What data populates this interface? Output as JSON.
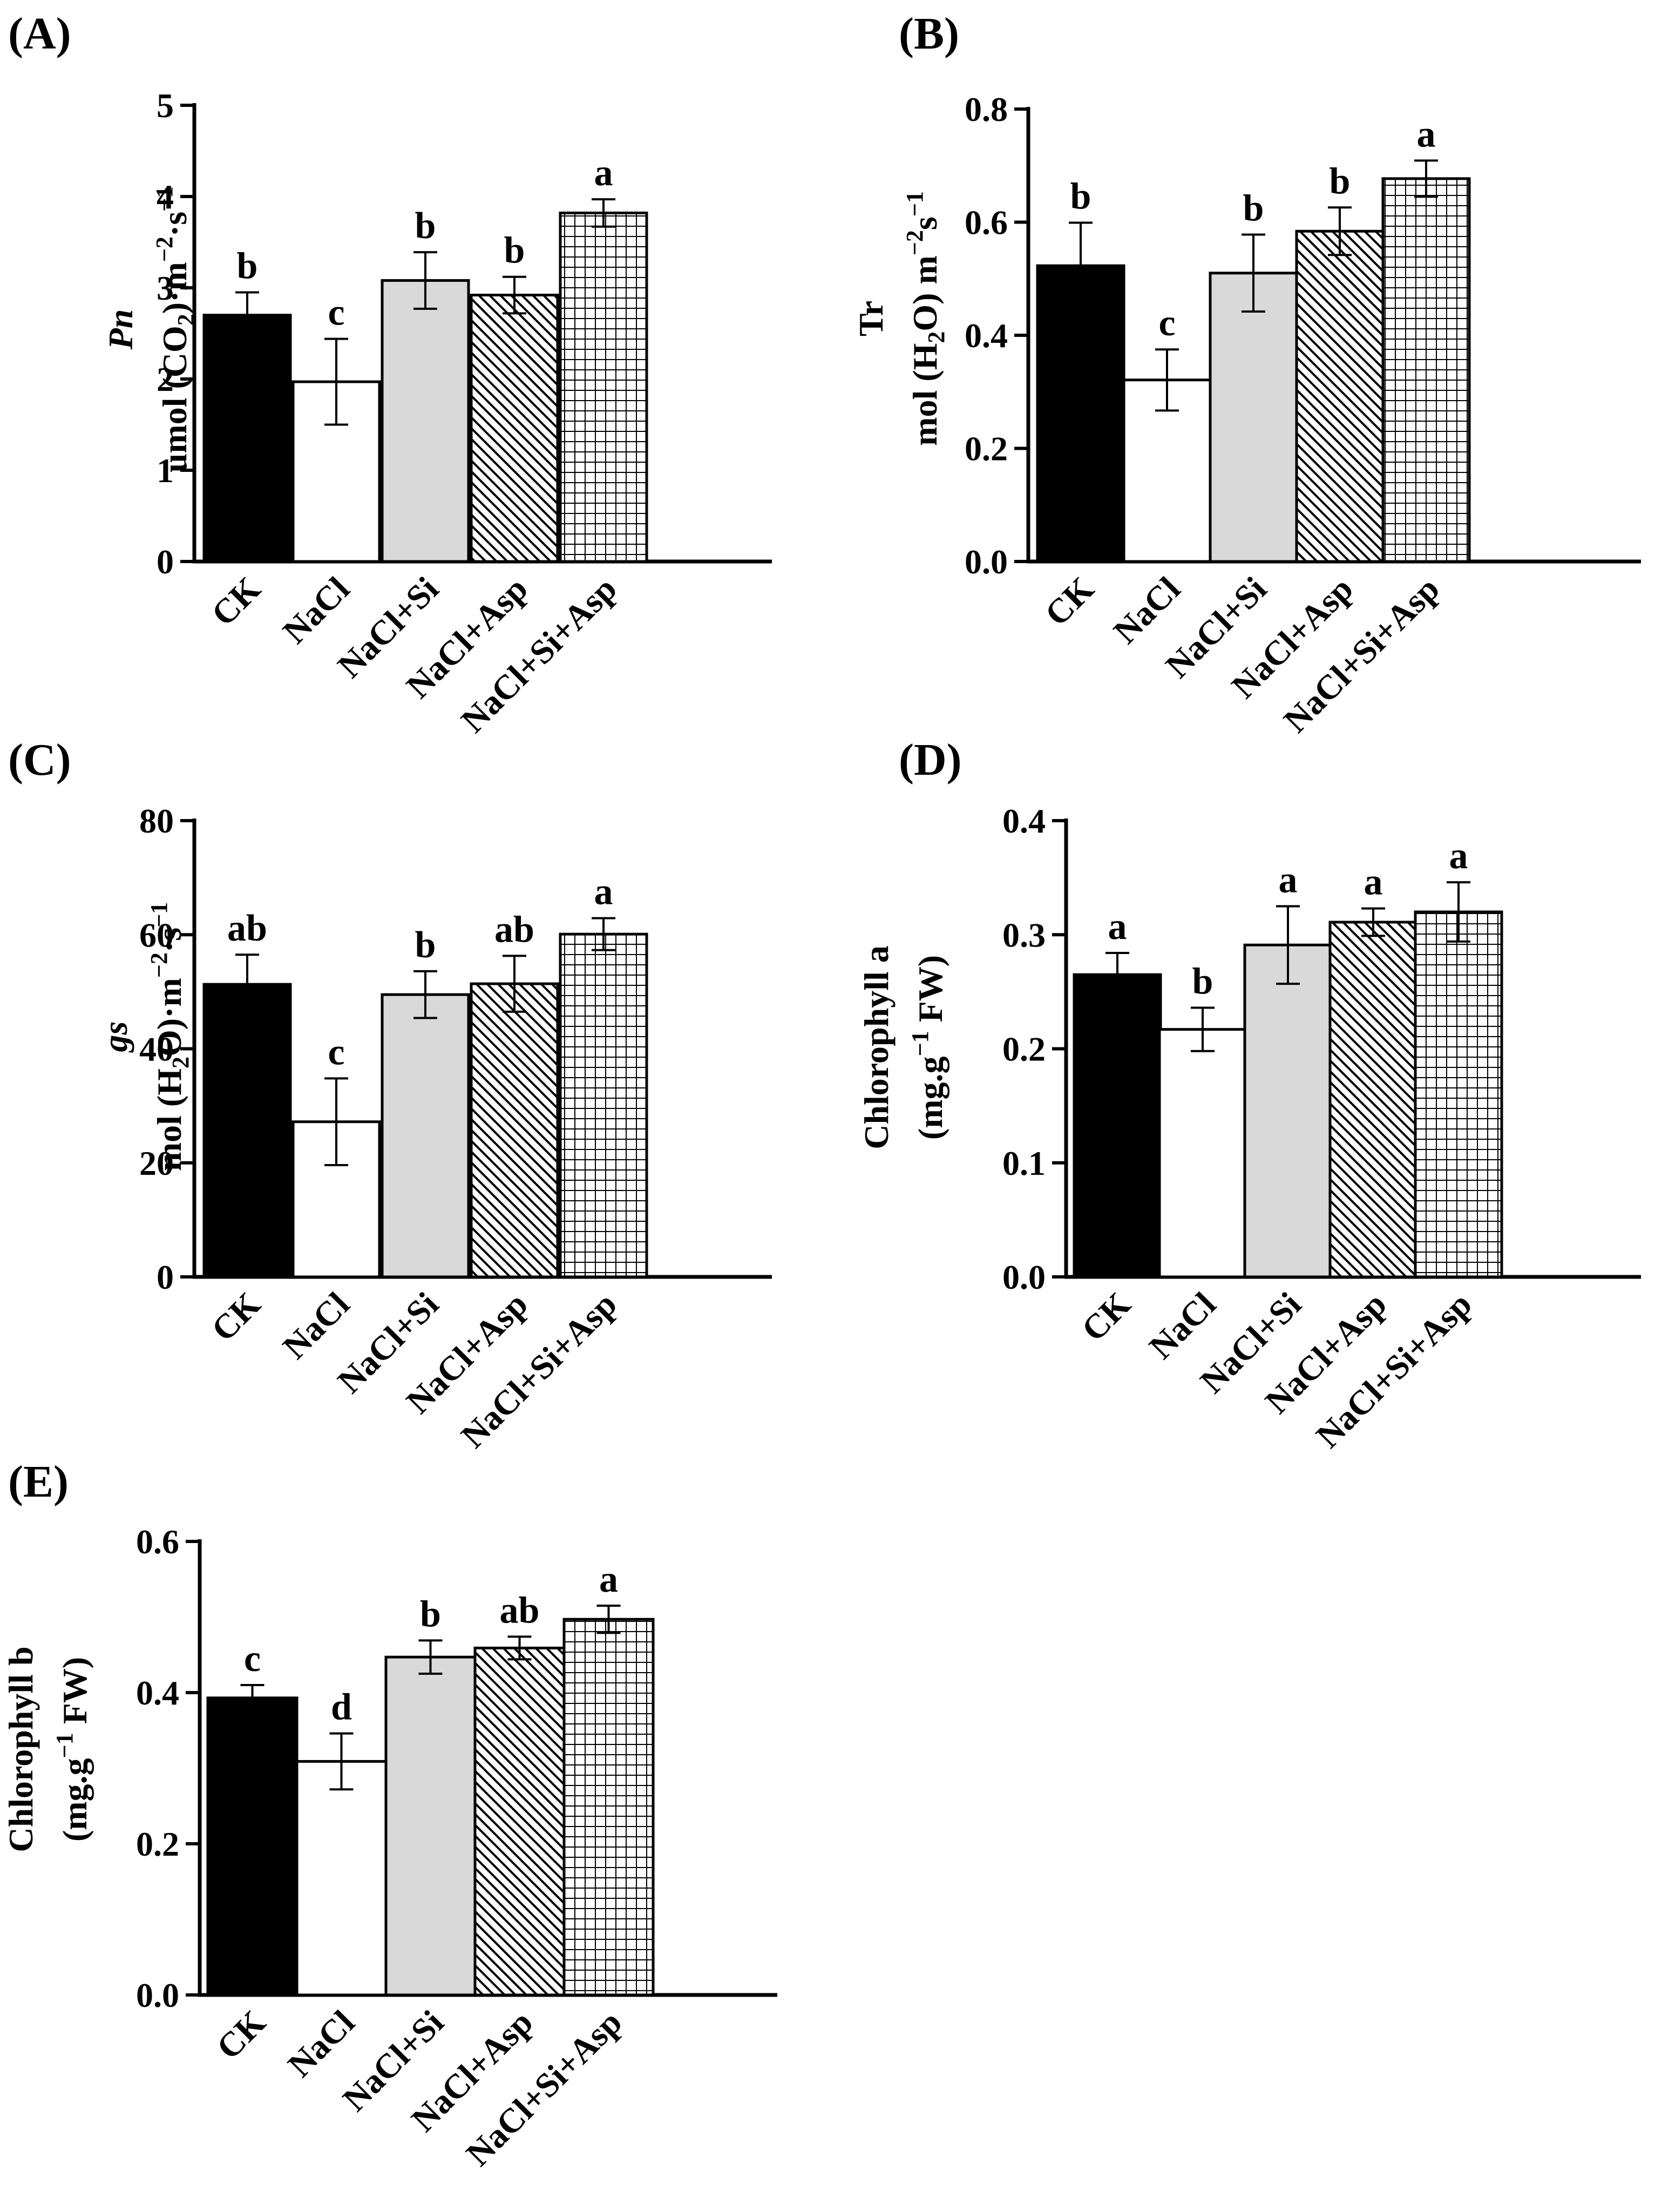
{
  "chart_data": [
    {
      "panel": "(A)",
      "type": "bar",
      "categories": [
        "CK",
        "NaCl",
        "NaCl+Si",
        "NaCl+Asp",
        "NaCl+Si+Asp"
      ],
      "values": [
        2.7,
        1.97,
        3.08,
        2.92,
        3.82
      ],
      "errors": [
        0.25,
        0.47,
        0.31,
        0.2,
        0.15
      ],
      "significance": [
        "b",
        "c",
        "b",
        "b",
        "a"
      ],
      "ylim": [
        0,
        5
      ],
      "yticks": [
        0,
        1,
        2,
        3,
        4,
        5
      ],
      "ytick_labels": [
        "0",
        "1",
        "2",
        "3",
        "4",
        "5"
      ],
      "ylabel_lines": [
        [
          {
            "t": "Pn",
            "style": "italic"
          }
        ],
        [
          {
            "t": "umol (CO"
          },
          {
            "t": "2",
            "sub": true
          },
          {
            "t": ")·m"
          },
          {
            "t": "−2",
            "sup": true
          },
          {
            "t": "·s"
          },
          {
            "t": "−1",
            "sup": true
          }
        ]
      ]
    },
    {
      "panel": "(B)",
      "type": "bar",
      "categories": [
        "CK",
        "NaCl",
        "NaCl+Si",
        "NaCl+Asp",
        "NaCl+Si+Asp"
      ],
      "values": [
        0.523,
        0.321,
        0.51,
        0.584,
        0.677
      ],
      "errors": [
        0.076,
        0.054,
        0.068,
        0.042,
        0.032
      ],
      "significance": [
        "b",
        "c",
        "b",
        "b",
        "a"
      ],
      "ylim": [
        0,
        0.8
      ],
      "yticks": [
        0,
        0.2,
        0.4,
        0.6,
        0.8
      ],
      "ytick_labels": [
        "0.0",
        "0.2",
        "0.4",
        "0.6",
        "0.8"
      ],
      "ylabel_lines": [
        [
          {
            "t": "Tr"
          }
        ],
        [
          {
            "t": "mol (H"
          },
          {
            "t": "2",
            "sub": true
          },
          {
            "t": "O) m"
          },
          {
            "t": "−2",
            "sup": true
          },
          {
            "t": "s"
          },
          {
            "t": "−1",
            "sup": true
          }
        ]
      ]
    },
    {
      "panel": "(C)",
      "type": "bar",
      "categories": [
        "CK",
        "NaCl",
        "NaCl+Si",
        "NaCl+Asp",
        "NaCl+Si+Asp"
      ],
      "values": [
        51.3,
        27.2,
        49.5,
        51.4,
        60.1
      ],
      "errors": [
        5.2,
        7.6,
        4.1,
        4.9,
        2.8
      ],
      "significance": [
        "ab",
        "c",
        "b",
        "ab",
        "a"
      ],
      "ylim": [
        0,
        80
      ],
      "yticks": [
        0,
        20,
        40,
        60,
        80
      ],
      "ytick_labels": [
        "0",
        "20",
        "40",
        "60",
        "80"
      ],
      "ylabel_lines": [
        [
          {
            "t": "gs",
            "style": "italic"
          }
        ],
        [
          {
            "t": "mol (H"
          },
          {
            "t": "2",
            "sub": true
          },
          {
            "t": "O)·m"
          },
          {
            "t": "−2",
            "sup": true
          },
          {
            "t": "·s"
          },
          {
            "t": "−1",
            "sup": true
          }
        ]
      ]
    },
    {
      "panel": "(D)",
      "type": "bar",
      "categories": [
        "CK",
        "NaCl",
        "NaCl+Si",
        "NaCl+Asp",
        "NaCl+Si+Asp"
      ],
      "values": [
        0.265,
        0.217,
        0.291,
        0.311,
        0.32
      ],
      "errors": [
        0.019,
        0.019,
        0.034,
        0.012,
        0.026
      ],
      "significance": [
        "a",
        "b",
        "a",
        "a",
        "a"
      ],
      "ylim": [
        0,
        0.4
      ],
      "yticks": [
        0,
        0.1,
        0.2,
        0.3,
        0.4
      ],
      "ytick_labels": [
        "0.0",
        "0.1",
        "0.2",
        "0.3",
        "0.4"
      ],
      "ylabel_lines": [
        [
          {
            "t": "Chlorophyll a"
          }
        ],
        [
          {
            "t": "(mg.g"
          },
          {
            "t": "−1",
            "sup": true
          },
          {
            "t": " FW)"
          }
        ]
      ]
    },
    {
      "panel": "(E)",
      "type": "bar",
      "categories": [
        "CK",
        "NaCl",
        "NaCl+Si",
        "NaCl+Asp",
        "NaCl+Si+Asp"
      ],
      "values": [
        0.393,
        0.309,
        0.447,
        0.459,
        0.497
      ],
      "errors": [
        0.017,
        0.037,
        0.022,
        0.015,
        0.018
      ],
      "significance": [
        "c",
        "d",
        "b",
        "ab",
        "a"
      ],
      "ylim": [
        0,
        0.6
      ],
      "yticks": [
        0,
        0.2,
        0.4,
        0.6
      ],
      "ytick_labels": [
        "0.0",
        "0.2",
        "0.4",
        "0.6"
      ],
      "ylabel_lines": [
        [
          {
            "t": "Chlorophyll b"
          }
        ],
        [
          {
            "t": "(mg.g"
          },
          {
            "t": "−1",
            "sup": true
          },
          {
            "t": " FW)"
          }
        ]
      ]
    }
  ],
  "series_style": [
    {
      "category": "CK",
      "fill": "#000000",
      "pattern": "solid"
    },
    {
      "category": "NaCl",
      "fill": "#ffffff",
      "pattern": "solid"
    },
    {
      "category": "NaCl+Si",
      "fill": "#d9d9d9",
      "pattern": "solid"
    },
    {
      "category": "NaCl+Asp",
      "fill": "#ffffff",
      "pattern": "diagonal-hatch"
    },
    {
      "category": "NaCl+Si+Asp",
      "fill": "#ffffff",
      "pattern": "grid"
    }
  ]
}
